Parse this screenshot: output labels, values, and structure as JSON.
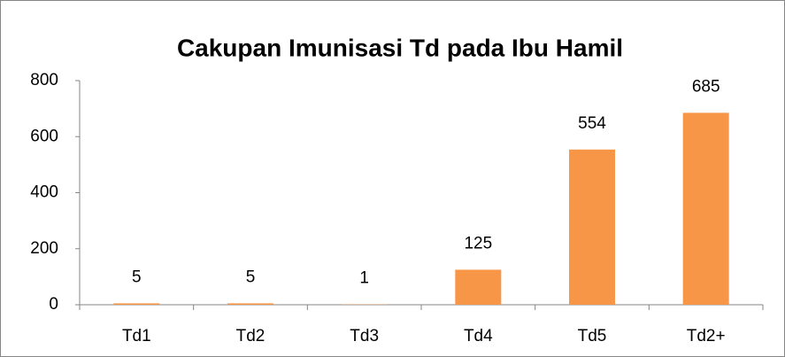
{
  "chart_data": {
    "type": "bar",
    "title": "Cakupan Imunisasi Td pada Ibu Hamil",
    "categories": [
      "Td1",
      "Td2",
      "Td3",
      "Td4",
      "Td5",
      "Td2+"
    ],
    "values": [
      5,
      5,
      1,
      125,
      554,
      685
    ],
    "color": "#f79646",
    "ylim": [
      0,
      800
    ],
    "yticks": [
      0,
      200,
      400,
      600,
      800
    ],
    "grid": false,
    "data_labels": true
  }
}
